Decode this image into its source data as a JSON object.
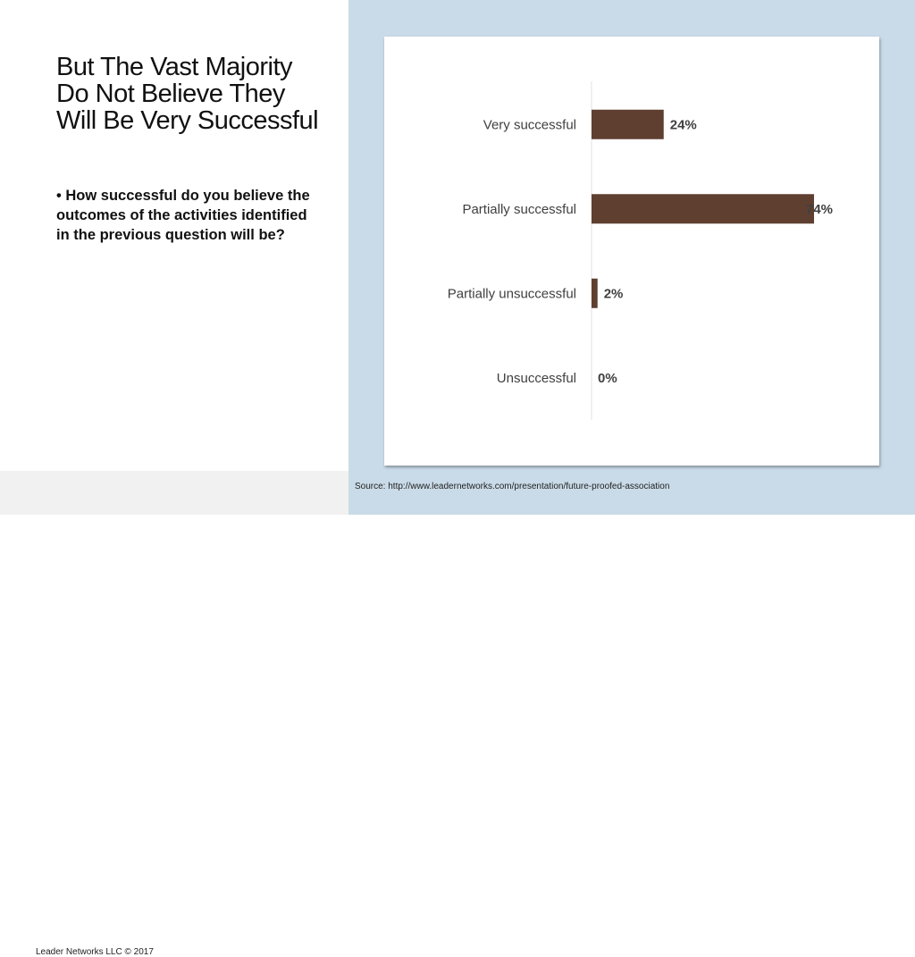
{
  "slide": {
    "title": "But The Vast Majority Do Not Believe They Will Be Very Successful",
    "bullet": "How successful do you believe the outcomes of the activities identified in the previous question will be?",
    "copyright": "Leader Networks LLC © 2017",
    "source": "Source:  http://www.leadernetworks.com/presentation/future-proofed-association"
  },
  "colors": {
    "bar": "#5e3f30",
    "background": "#c9dbe8"
  },
  "chart_data": {
    "type": "bar",
    "orientation": "horizontal",
    "categories": [
      "Very successful",
      "Partially successful",
      "Partially unsuccessful",
      "Unsuccessful"
    ],
    "values": [
      24,
      74,
      2,
      0
    ],
    "data_labels": [
      "24%",
      "74%",
      "2%",
      "0%"
    ],
    "unit": "%",
    "grid": false,
    "xlim": [
      0,
      80
    ]
  }
}
